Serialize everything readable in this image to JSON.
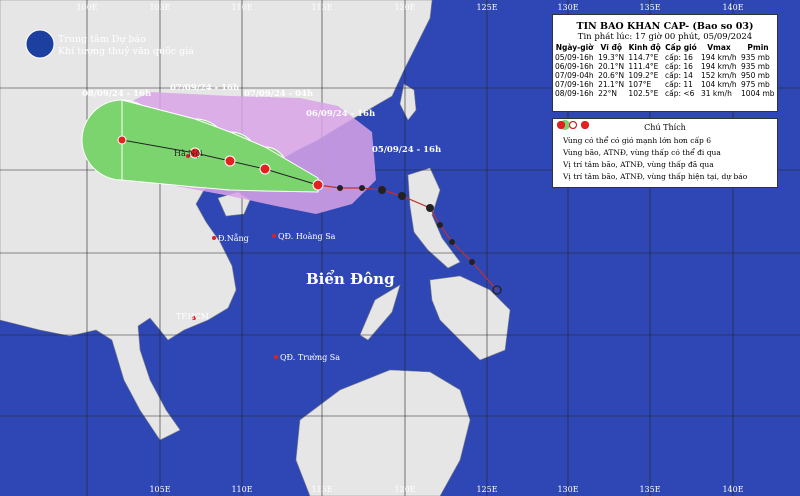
{
  "header": {
    "agency_line1": "Trung tâm Dự báo",
    "agency_line2": "Khí tượng thuỷ văn quốc gia"
  },
  "lon_labels_top": [
    "100E",
    "105E",
    "110E",
    "115E",
    "120E",
    "125E",
    "130E",
    "135E",
    "140E"
  ],
  "lon_labels_bottom": [
    "105E",
    "110E",
    "115E",
    "120E",
    "125E",
    "130E",
    "135E",
    "140E"
  ],
  "bulletin": {
    "title": "TIN BAO KHAN CAP- (Bao so 03)",
    "issued": "Tin phát lúc: 17 giờ 00 phút, 05/09/2024",
    "columns": [
      "Ngày-giờ",
      "Vĩ độ",
      "Kinh độ",
      "Cấp gió",
      "Vmax",
      "Pmin"
    ],
    "rows": [
      [
        "05/09-16h",
        "19.3°N",
        "114.7°E",
        "cấp: 16",
        "194 km/h",
        "935 mb"
      ],
      [
        "06/09-16h",
        "20.1°N",
        "111.4°E",
        "cấp: 16",
        "194 km/h",
        "935 mb"
      ],
      [
        "07/09-04h",
        "20.6°N",
        "109.2°E",
        "cấp: 14",
        "152 km/h",
        "950 mb"
      ],
      [
        "07/09-16h",
        "21.1°N",
        "107°E",
        "cấp: 11",
        "104 km/h",
        "975 mb"
      ],
      [
        "08/09-16h",
        "22°N",
        "102.5°E",
        "cấp: <6",
        "31 km/h",
        "1004 mb"
      ]
    ]
  },
  "legend": {
    "title": "Chú Thích",
    "items": [
      "Vùng có thể có gió mạnh lớn hơn cấp 6",
      "Vùng bão, ATNĐ, vùng thấp có thể đi qua",
      "Vị trí tâm bão, ATNĐ, vùng thấp đã qua",
      "Vị trí tâm bão, ATNĐ, vùng thấp hiện tại, dự báo"
    ]
  },
  "map_labels": {
    "forecast_times": [
      "08/09/24 - 16h",
      "07/09/24 - 16h",
      "07/09/24 - 04h",
      "06/09/24 - 16h",
      "05/09/24 - 16h"
    ],
    "places": [
      "Hà Nội",
      "Đ.Nẵng",
      "QĐ. Hoàng Sa",
      "TP.HCM",
      "QĐ. Trường Sa"
    ],
    "sea": "Biển Đông"
  }
}
